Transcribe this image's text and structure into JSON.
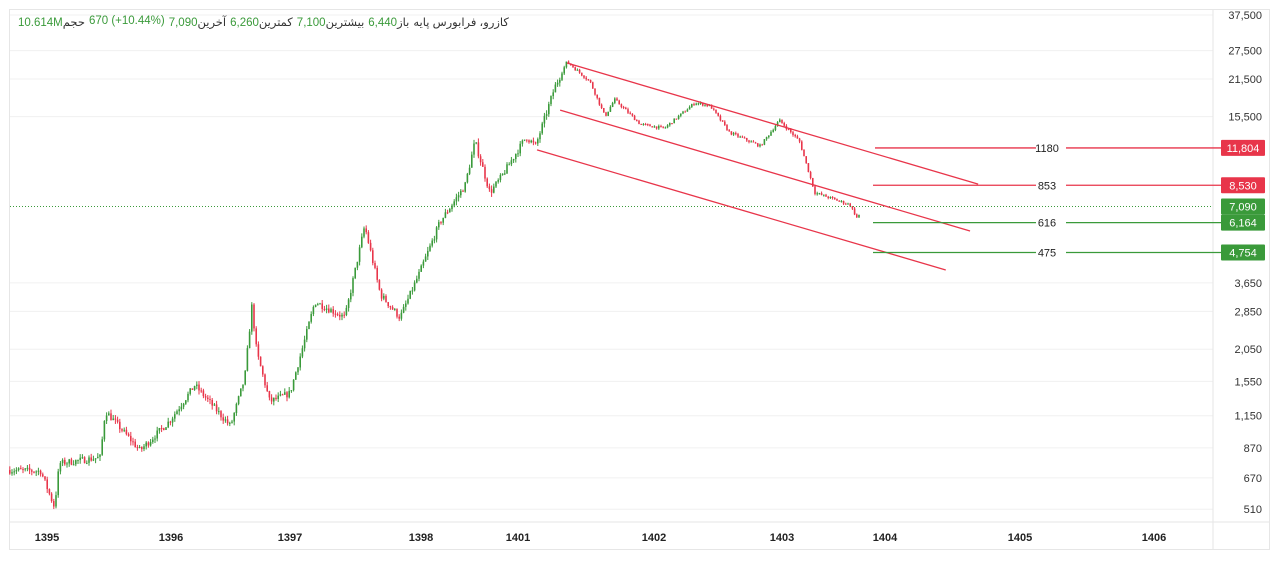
{
  "header": {
    "symbol": "کازرو، فرابورس پایه",
    "open_label": "باز",
    "open": "6,440",
    "high_label": "بیشترین",
    "high": "7,100",
    "low_label": "کمترین",
    "low": "6,260",
    "last_label": "آخرین",
    "last": "7,090",
    "change": "670 (+10.44%)",
    "volume_label": "حجم",
    "volume": "10.614M"
  },
  "colors": {
    "up": "#3a9a3a",
    "down": "#e8354a",
    "channel": "#e8354a",
    "support": "#3a9a3a",
    "grid": "#f0f0f0"
  },
  "chart_data": {
    "type": "candlestick",
    "y_scale": "log",
    "ylim": [
      500,
      37500
    ],
    "y_ticks": [
      "37,500",
      "27,500",
      "21,500",
      "15,500",
      "3,650",
      "2,850",
      "2,050",
      "1,550",
      "1,150",
      "870",
      "670",
      "510"
    ],
    "y_tick_values": [
      37500,
      27500,
      21500,
      15500,
      3650,
      2850,
      2050,
      1550,
      1150,
      870,
      670,
      510
    ],
    "x_ticks": [
      "1395",
      "1396",
      "1397",
      "1398",
      "1401",
      "1402",
      "1403",
      "1404",
      "1405",
      "1406"
    ],
    "price_path": [
      [
        1394.7,
        717
      ],
      [
        1394.95,
        710
      ],
      [
        1395.06,
        520
      ],
      [
        1395.1,
        760
      ],
      [
        1395.43,
        800
      ],
      [
        1395.47,
        1200
      ],
      [
        1395.75,
        850
      ],
      [
        1395.99,
        1100
      ],
      [
        1396.2,
        1500
      ],
      [
        1396.5,
        1050
      ],
      [
        1396.62,
        1600
      ],
      [
        1396.68,
        3000
      ],
      [
        1396.72,
        2000
      ],
      [
        1396.83,
        1300
      ],
      [
        1397.0,
        1400
      ],
      [
        1397.11,
        2200
      ],
      [
        1397.19,
        3100
      ],
      [
        1397.42,
        2700
      ],
      [
        1397.57,
        6000
      ],
      [
        1397.69,
        3300
      ],
      [
        1397.84,
        2700
      ],
      [
        1397.99,
        4000
      ],
      [
        1398.59,
        6200
      ],
      [
        1399.36,
        8500
      ],
      [
        1399.67,
        12500
      ],
      [
        1400.13,
        8000
      ],
      [
        1400.44,
        9000
      ],
      [
        1401.06,
        13000
      ],
      [
        1401.13,
        12000
      ],
      [
        1401.27,
        20000
      ],
      [
        1401.36,
        25000
      ],
      [
        1401.53,
        21000
      ],
      [
        1401.64,
        15500
      ],
      [
        1401.71,
        18000
      ],
      [
        1401.9,
        14500
      ],
      [
        1402.08,
        14000
      ],
      [
        1402.32,
        17500
      ],
      [
        1402.44,
        17000
      ],
      [
        1402.59,
        13500
      ],
      [
        1402.83,
        12000
      ],
      [
        1402.98,
        15000
      ],
      [
        1403.17,
        12500
      ],
      [
        1403.32,
        8000
      ],
      [
        1403.66,
        7200
      ],
      [
        1403.74,
        6300
      ],
      [
        1403.76,
        7090
      ]
    ],
    "last_price": 7090,
    "last_price_label": "7,090",
    "channel_lines": [
      {
        "start": [
          1401.36,
          24700
        ],
        "end": [
          1404.69,
          8620
        ]
      },
      {
        "start": [
          1401.31,
          16400
        ],
        "end": [
          1404.63,
          5730
        ]
      },
      {
        "start": [
          1401.14,
          11600
        ],
        "end": [
          1404.45,
          4085
        ]
      }
    ],
    "levels": [
      {
        "price": 11804,
        "price_label": "11,804",
        "text": "1180",
        "type": "resistance"
      },
      {
        "price": 8530,
        "price_label": "8,530",
        "text": "853",
        "type": "resistance"
      },
      {
        "price": 6164,
        "price_label": "6,164",
        "text": "616",
        "type": "support"
      },
      {
        "price": 4754,
        "price_label": "4,754",
        "text": "475",
        "type": "support"
      }
    ]
  }
}
